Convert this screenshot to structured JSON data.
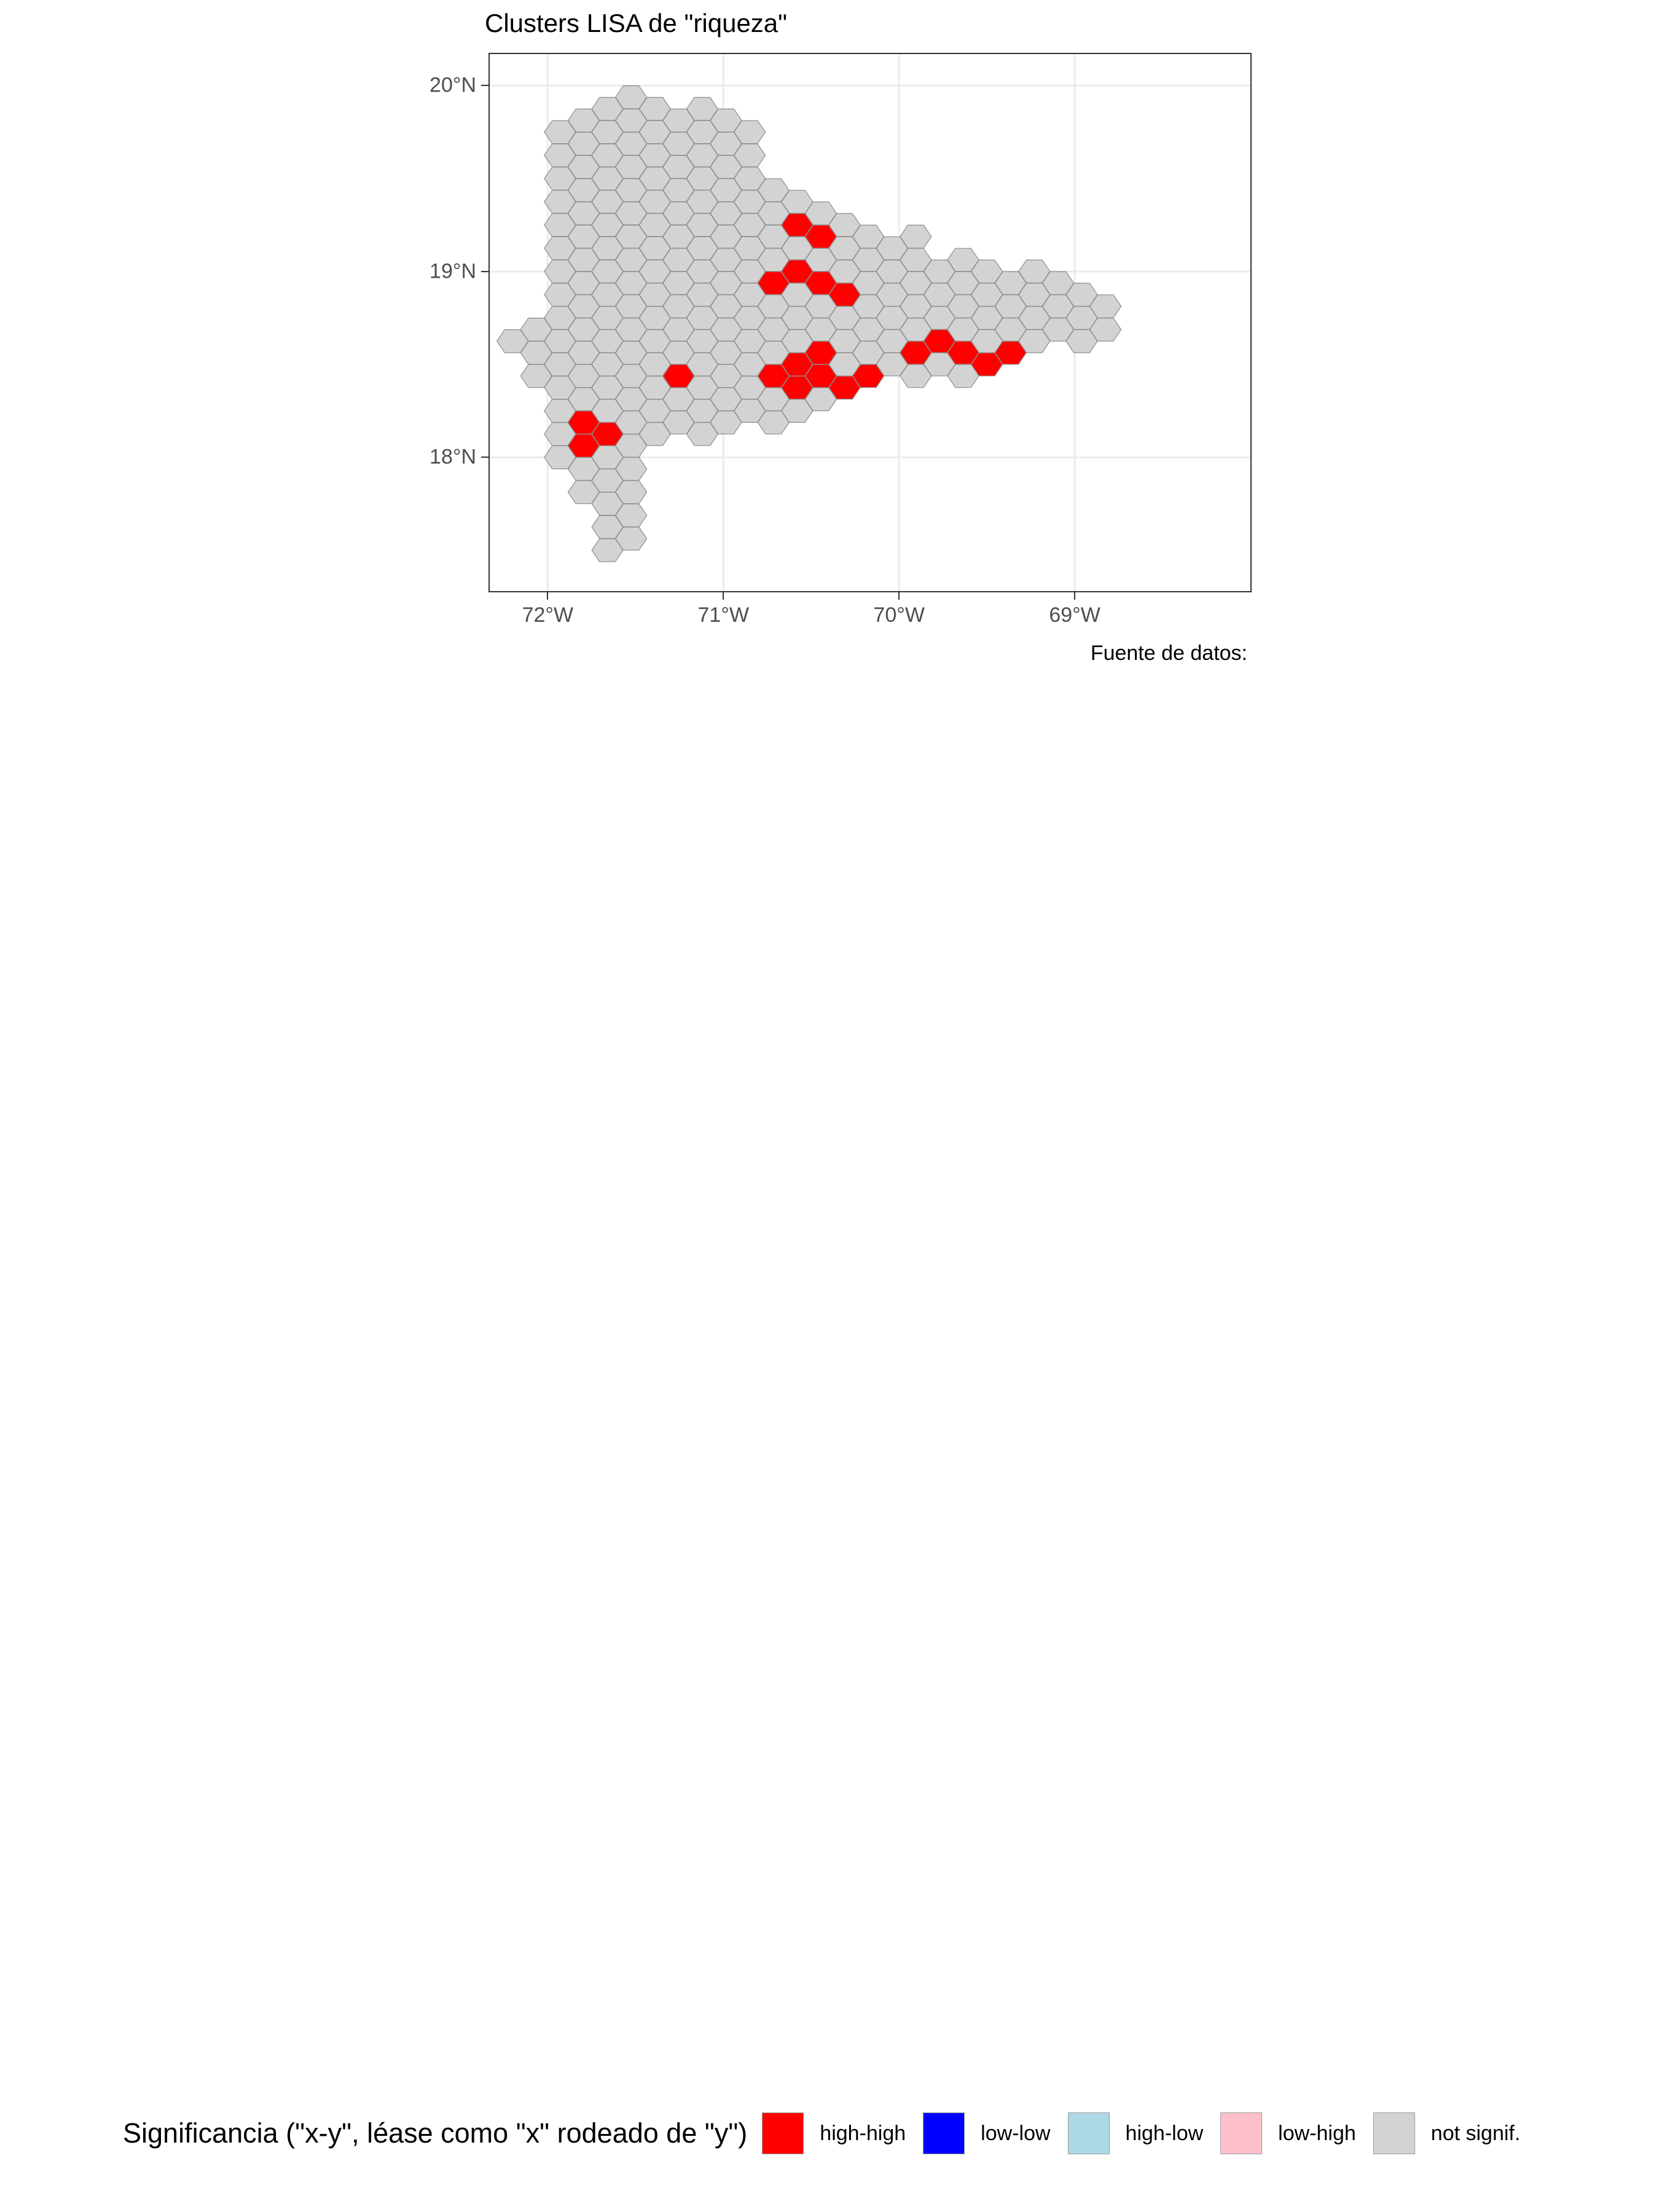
{
  "title": "Clusters LISA de \"riqueza\"",
  "caption": "Fuente de datos:",
  "axes": {
    "x_ticks": [
      {
        "value": -72,
        "label": "72°W"
      },
      {
        "value": -71,
        "label": "71°W"
      },
      {
        "value": -70,
        "label": "70°W"
      },
      {
        "value": -69,
        "label": "69°W"
      }
    ],
    "y_ticks": [
      {
        "value": 18,
        "label": "18°N"
      },
      {
        "value": 19,
        "label": "19°N"
      },
      {
        "value": 20,
        "label": "20°N"
      }
    ],
    "xlim": [
      -72.33,
      -68.0
    ],
    "ylim": [
      17.28,
      20.17
    ]
  },
  "legend": {
    "title": "Significancia (\"x-y\", léase como \"x\" rodeado de \"y\")",
    "items": [
      {
        "label": "high-high",
        "color": "#FF0000"
      },
      {
        "label": "low-low",
        "color": "#0000FF"
      },
      {
        "label": "high-low",
        "color": "#ADD8E6"
      },
      {
        "label": "low-high",
        "color": "#FFC0CB"
      },
      {
        "label": "not signif.",
        "color": "#D3D3D3"
      }
    ]
  },
  "colors": {
    "not_signif": "#D3D3D3",
    "high_high": "#FF0000",
    "hex_border": "#8C8C8C",
    "grid": "#EBEBEB"
  },
  "chart_data": {
    "type": "hexagon-map",
    "hexagon_spacing": {
      "dlon": 0.135,
      "dlat": 0.0625
    },
    "grid_origin": {
      "lon": -72.2,
      "lat": 17.5
    },
    "rows_col_ranges": [
      [
        0,
        [
          4,
          4
        ]
      ],
      [
        1,
        [
          4,
          5
        ]
      ],
      [
        2,
        [
          4,
          5
        ]
      ],
      [
        3,
        [
          4,
          5
        ]
      ],
      [
        4,
        [
          3,
          5
        ]
      ],
      [
        5,
        [
          3,
          6
        ]
      ],
      [
        6,
        [
          3,
          5
        ]
      ],
      [
        7,
        [
          2,
          6
        ]
      ],
      [
        8,
        [
          2,
          5
        ]
      ],
      [
        9,
        [
          2,
          6
        ]
      ],
      [
        10,
        [
          1,
          8
        ]
      ],
      [
        11,
        [
          2,
          11
        ]
      ],
      [
        12,
        [
          1,
          12
        ]
      ],
      [
        13,
        [
          2,
          14
        ]
      ],
      [
        14,
        [
          1,
          15
        ]
      ],
      [
        15,
        [
          1,
          19
        ]
      ],
      [
        16,
        [
          1,
          21
        ]
      ],
      [
        17,
        [
          0,
          22
        ]
      ],
      [
        18,
        [
          0,
          24
        ]
      ],
      [
        19,
        [
          1,
          25
        ]
      ],
      [
        20,
        [
          1,
          25
        ]
      ],
      [
        21,
        [
          2,
          25
        ]
      ],
      [
        22,
        [
          1,
          24
        ]
      ],
      [
        23,
        [
          2,
          23
        ]
      ],
      [
        24,
        [
          1,
          22
        ]
      ],
      [
        25,
        [
          2,
          19
        ]
      ],
      [
        26,
        [
          2,
          17
        ]
      ],
      [
        27,
        [
          2,
          17
        ]
      ],
      [
        28,
        [
          2,
          14
        ]
      ],
      [
        29,
        [
          2,
          13
        ]
      ],
      [
        30,
        [
          2,
          12
        ]
      ],
      [
        31,
        [
          2,
          12
        ]
      ],
      [
        32,
        [
          2,
          11
        ]
      ],
      [
        33,
        [
          2,
          10
        ]
      ],
      [
        34,
        [
          2,
          10
        ]
      ],
      [
        35,
        [
          2,
          10
        ]
      ],
      [
        36,
        [
          2,
          10
        ]
      ],
      [
        37,
        [
          3,
          9
        ]
      ],
      [
        38,
        [
          4,
          8
        ]
      ],
      [
        39,
        [
          5,
          6
        ]
      ],
      [
        40,
        [
          7,
          7
        ]
      ]
    ],
    "high_high_cells": [
      [
        10,
        3
      ],
      [
        9,
        3
      ],
      [
        11,
        3
      ],
      [
        10,
        4
      ],
      [
        9,
        4
      ],
      [
        14,
        7
      ],
      [
        15,
        7
      ],
      [
        16,
        7
      ],
      [
        15,
        8
      ],
      [
        13,
        8
      ],
      [
        15,
        11
      ],
      [
        16,
        11
      ],
      [
        17,
        12
      ],
      [
        16,
        12
      ],
      [
        14,
        12
      ],
      [
        15,
        13
      ],
      [
        16,
        13
      ],
      [
        17,
        13
      ],
      [
        14,
        14
      ],
      [
        15,
        14
      ],
      [
        13,
        14
      ],
      [
        16,
        15
      ],
      [
        15,
        15
      ],
      [
        17,
        17
      ],
      [
        18,
        17
      ],
      [
        16,
        17
      ],
      [
        17,
        18
      ],
      [
        18,
        18
      ],
      [
        16,
        19
      ],
      [
        17,
        19
      ],
      [
        16,
        20
      ],
      [
        17,
        21
      ],
      [
        16,
        22
      ],
      [
        17,
        23
      ],
      [
        16,
        23
      ],
      [
        15,
        24
      ],
      [
        16,
        25
      ],
      [
        17,
        25
      ],
      [
        18,
        26
      ],
      [
        17,
        27
      ],
      [
        16,
        27
      ],
      [
        24,
        12
      ],
      [
        23,
        13
      ],
      [
        23,
        11
      ],
      [
        22,
        14
      ],
      [
        28,
        12
      ],
      [
        27,
        13
      ],
      [
        29,
        12
      ]
    ]
  }
}
